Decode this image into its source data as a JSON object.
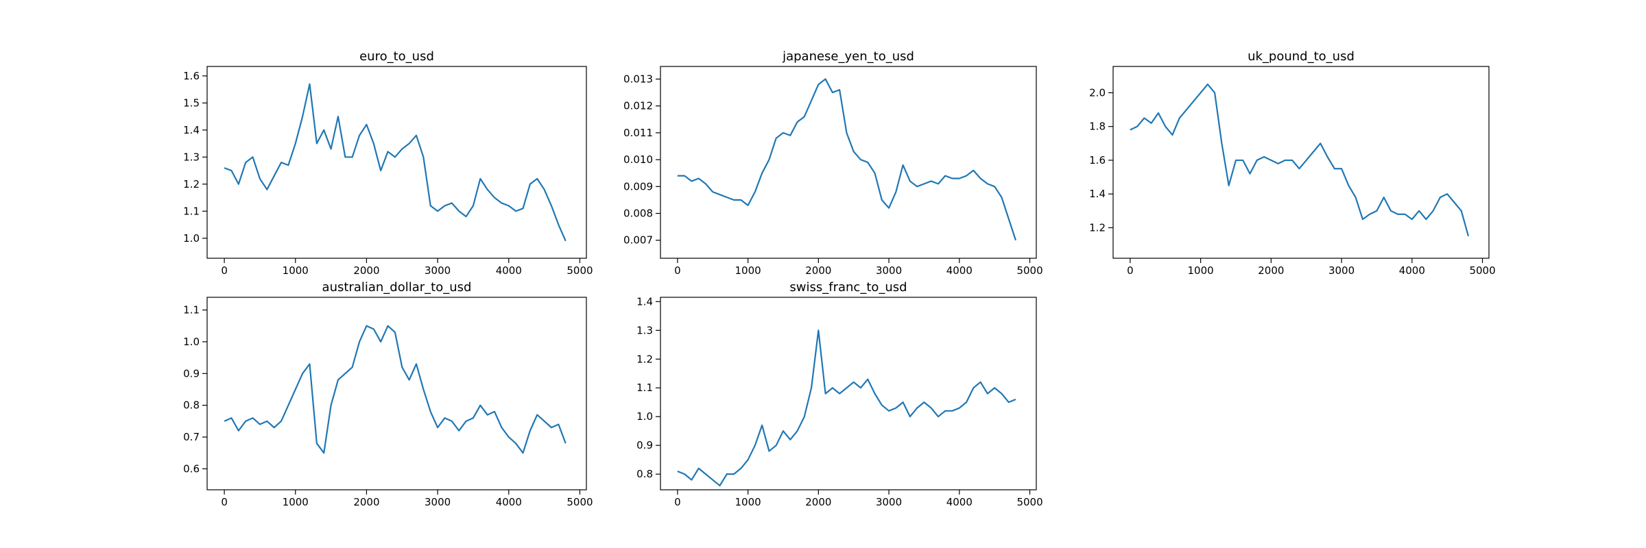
{
  "chart_data": [
    {
      "type": "line",
      "title": "euro_to_usd",
      "color": "#1f77b4",
      "x": [
        0,
        100,
        200,
        300,
        400,
        500,
        600,
        700,
        800,
        900,
        1000,
        1100,
        1200,
        1300,
        1400,
        1500,
        1600,
        1700,
        1800,
        1900,
        2000,
        2100,
        2200,
        2300,
        2400,
        2500,
        2600,
        2700,
        2800,
        2900,
        3000,
        3100,
        3200,
        3300,
        3400,
        3500,
        3600,
        3700,
        3800,
        3900,
        4000,
        4100,
        4200,
        4300,
        4400,
        4500,
        4600,
        4700,
        4800
      ],
      "values": [
        1.26,
        1.25,
        1.2,
        1.28,
        1.3,
        1.22,
        1.18,
        1.23,
        1.28,
        1.27,
        1.35,
        1.45,
        1.57,
        1.35,
        1.4,
        1.33,
        1.45,
        1.3,
        1.3,
        1.38,
        1.42,
        1.35,
        1.25,
        1.32,
        1.3,
        1.33,
        1.35,
        1.38,
        1.3,
        1.12,
        1.1,
        1.12,
        1.13,
        1.1,
        1.08,
        1.12,
        1.22,
        1.18,
        1.15,
        1.13,
        1.12,
        1.1,
        1.11,
        1.2,
        1.22,
        1.18,
        1.12,
        1.05,
        0.99
      ],
      "xlim": [
        -242,
        5092
      ],
      "xticks": [
        0,
        1000,
        2000,
        3000,
        4000,
        5000
      ],
      "ylim": [
        0.926,
        1.635
      ],
      "yticks": [
        {
          "value": 1.0,
          "label": "1.0"
        },
        1.1,
        1.2,
        1.3,
        1.4,
        1.5,
        1.6
      ]
    },
    {
      "type": "line",
      "title": "japanese_yen_to_usd",
      "color": "#1f77b4",
      "x": [
        0,
        100,
        200,
        300,
        400,
        500,
        600,
        700,
        800,
        900,
        1000,
        1100,
        1200,
        1300,
        1400,
        1500,
        1600,
        1700,
        1800,
        1900,
        2000,
        2100,
        2200,
        2300,
        2400,
        2500,
        2600,
        2700,
        2800,
        2900,
        3000,
        3100,
        3200,
        3300,
        3400,
        3500,
        3600,
        3700,
        3800,
        3900,
        4000,
        4100,
        4200,
        4300,
        4400,
        4500,
        4600,
        4700,
        4800
      ],
      "values": [
        0.0094,
        0.0094,
        0.0092,
        0.0093,
        0.0091,
        0.0088,
        0.0087,
        0.0086,
        0.0085,
        0.0085,
        0.0083,
        0.0088,
        0.0095,
        0.01,
        0.0108,
        0.011,
        0.0109,
        0.0114,
        0.0116,
        0.0122,
        0.0128,
        0.013,
        0.0125,
        0.0126,
        0.011,
        0.0103,
        0.01,
        0.0099,
        0.0095,
        0.0085,
        0.0082,
        0.0088,
        0.0098,
        0.0092,
        0.009,
        0.0091,
        0.0092,
        0.0091,
        0.0094,
        0.0093,
        0.0093,
        0.0094,
        0.0096,
        0.0093,
        0.0091,
        0.009,
        0.0086,
        0.0078,
        0.007
      ],
      "xlim": [
        -242,
        5092
      ],
      "xticks": [
        0,
        1000,
        2000,
        3000,
        4000,
        5000
      ],
      "ylim": [
        0.00633,
        0.01347
      ],
      "yticks": [
        0.007,
        0.008,
        0.009,
        {
          "value": 0.01,
          "label": "0.010"
        },
        0.011,
        0.012,
        0.013
      ]
    },
    {
      "type": "line",
      "title": "uk_pound_to_usd",
      "color": "#1f77b4",
      "x": [
        0,
        100,
        200,
        300,
        400,
        500,
        600,
        700,
        800,
        900,
        1000,
        1100,
        1200,
        1300,
        1400,
        1500,
        1600,
        1700,
        1800,
        1900,
        2000,
        2100,
        2200,
        2300,
        2400,
        2500,
        2600,
        2700,
        2800,
        2900,
        3000,
        3100,
        3200,
        3300,
        3400,
        3500,
        3600,
        3700,
        3800,
        3900,
        4000,
        4100,
        4200,
        4300,
        4400,
        4500,
        4600,
        4700,
        4800
      ],
      "values": [
        1.78,
        1.8,
        1.85,
        1.82,
        1.88,
        1.8,
        1.75,
        1.85,
        1.9,
        1.95,
        2.0,
        2.05,
        2.0,
        1.7,
        1.45,
        1.6,
        1.6,
        1.52,
        1.6,
        1.62,
        1.6,
        1.58,
        1.6,
        1.6,
        1.55,
        1.6,
        1.65,
        1.7,
        1.62,
        1.55,
        1.55,
        1.45,
        1.38,
        1.25,
        1.28,
        1.3,
        1.38,
        1.3,
        1.28,
        1.28,
        1.25,
        1.3,
        1.25,
        1.3,
        1.38,
        1.4,
        1.35,
        1.3,
        1.15
      ],
      "xlim": [
        -242,
        5092
      ],
      "xticks": [
        0,
        1000,
        2000,
        3000,
        4000,
        5000
      ],
      "ylim": [
        1.019,
        2.156
      ],
      "yticks": [
        1.2,
        1.4,
        1.6,
        1.8,
        {
          "value": 2.0,
          "label": "2.0"
        }
      ]
    },
    {
      "type": "line",
      "title": "australian_dollar_to_usd",
      "color": "#1f77b4",
      "x": [
        0,
        100,
        200,
        300,
        400,
        500,
        600,
        700,
        800,
        900,
        1000,
        1100,
        1200,
        1300,
        1400,
        1500,
        1600,
        1700,
        1800,
        1900,
        2000,
        2100,
        2200,
        2300,
        2400,
        2500,
        2600,
        2700,
        2800,
        2900,
        3000,
        3100,
        3200,
        3300,
        3400,
        3500,
        3600,
        3700,
        3800,
        3900,
        4000,
        4100,
        4200,
        4300,
        4400,
        4500,
        4600,
        4700,
        4800
      ],
      "values": [
        0.75,
        0.76,
        0.72,
        0.75,
        0.76,
        0.74,
        0.75,
        0.73,
        0.75,
        0.8,
        0.85,
        0.9,
        0.93,
        0.68,
        0.65,
        0.8,
        0.88,
        0.9,
        0.92,
        1.0,
        1.05,
        1.04,
        1.0,
        1.05,
        1.03,
        0.92,
        0.88,
        0.93,
        0.85,
        0.78,
        0.73,
        0.76,
        0.75,
        0.72,
        0.75,
        0.76,
        0.8,
        0.77,
        0.78,
        0.73,
        0.7,
        0.68,
        0.65,
        0.72,
        0.77,
        0.75,
        0.73,
        0.74,
        0.68
      ],
      "xlim": [
        -242,
        5092
      ],
      "xticks": [
        0,
        1000,
        2000,
        3000,
        4000,
        5000
      ],
      "ylim": [
        0.534,
        1.14
      ],
      "yticks": [
        0.6,
        0.7,
        0.8,
        0.9,
        {
          "value": 1.0,
          "label": "1.0"
        },
        1.1
      ]
    },
    {
      "type": "line",
      "title": "swiss_franc_to_usd",
      "color": "#1f77b4",
      "x": [
        0,
        100,
        200,
        300,
        400,
        500,
        600,
        700,
        800,
        900,
        1000,
        1100,
        1200,
        1300,
        1400,
        1500,
        1600,
        1700,
        1800,
        1900,
        2000,
        2100,
        2200,
        2300,
        2400,
        2500,
        2600,
        2700,
        2800,
        2900,
        3000,
        3100,
        3200,
        3300,
        3400,
        3500,
        3600,
        3700,
        3800,
        3900,
        4000,
        4100,
        4200,
        4300,
        4400,
        4500,
        4600,
        4700,
        4800
      ],
      "values": [
        0.81,
        0.8,
        0.78,
        0.82,
        0.8,
        0.78,
        0.76,
        0.8,
        0.8,
        0.82,
        0.85,
        0.9,
        0.97,
        0.88,
        0.9,
        0.95,
        0.92,
        0.95,
        1.0,
        1.1,
        1.3,
        1.08,
        1.1,
        1.08,
        1.1,
        1.12,
        1.1,
        1.13,
        1.08,
        1.04,
        1.02,
        1.03,
        1.05,
        1.0,
        1.03,
        1.05,
        1.03,
        1.0,
        1.02,
        1.02,
        1.03,
        1.05,
        1.1,
        1.12,
        1.08,
        1.1,
        1.08,
        1.05,
        1.06
      ],
      "xlim": [
        -242,
        5092
      ],
      "xticks": [
        0,
        1000,
        2000,
        3000,
        4000,
        5000
      ],
      "ylim": [
        0.7456,
        1.415
      ],
      "yticks": [
        0.8,
        0.9,
        {
          "value": 1.0,
          "label": "1.0"
        },
        1.1,
        1.2,
        1.3,
        1.4
      ]
    }
  ]
}
